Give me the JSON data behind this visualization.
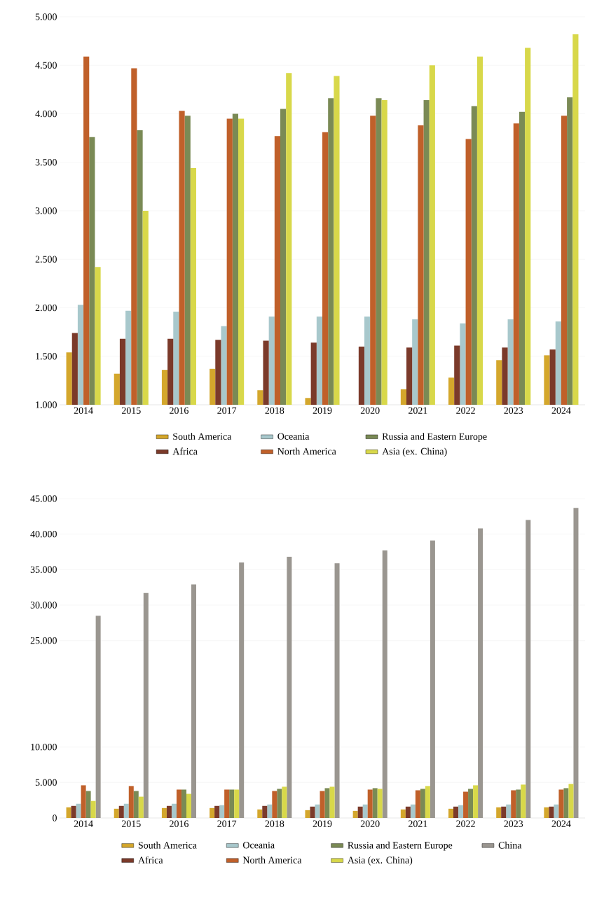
{
  "chart_data": [
    {
      "type": "bar",
      "categories": [
        "2014",
        "2015",
        "2016",
        "2017",
        "2018",
        "2019",
        "2020",
        "2021",
        "2022",
        "2023",
        "2024"
      ],
      "series": [
        {
          "name": "South America",
          "color": "#d4a72c",
          "values": [
            1540,
            1320,
            1360,
            1370,
            1150,
            1070,
            1000,
            1160,
            1280,
            1460,
            1510
          ]
        },
        {
          "name": "Africa",
          "color": "#7b3a2a",
          "values": [
            1740,
            1680,
            1680,
            1670,
            1660,
            1640,
            1600,
            1590,
            1610,
            1590,
            1570
          ]
        },
        {
          "name": "Oceania",
          "color": "#a8c8cc",
          "values": [
            2030,
            1970,
            1960,
            1810,
            1910,
            1910,
            1910,
            1880,
            1840,
            1880,
            1860
          ]
        },
        {
          "name": "North America",
          "color": "#c0602a",
          "values": [
            4590,
            4470,
            4030,
            3950,
            3770,
            3810,
            3980,
            3880,
            3740,
            3900,
            3980
          ]
        },
        {
          "name": "Russia and Eastern Europe",
          "color": "#7a8a55",
          "values": [
            3760,
            3830,
            3980,
            4000,
            4050,
            4160,
            4160,
            4140,
            4080,
            4020,
            4170
          ]
        },
        {
          "name": "Asia (ex. China)",
          "color": "#d8d84a",
          "values": [
            2420,
            3000,
            3440,
            3950,
            4420,
            4390,
            4140,
            4500,
            4590,
            4680,
            4820
          ]
        }
      ],
      "ylim": [
        1000,
        5000
      ],
      "yticks": [
        {
          "value": 1000,
          "label": "1.000"
        },
        {
          "value": 1500,
          "label": "1.500"
        },
        {
          "value": 2000,
          "label": "2.000"
        },
        {
          "value": 2500,
          "label": "2.500"
        },
        {
          "value": 3000,
          "label": "3.000"
        },
        {
          "value": 3500,
          "label": "3.500"
        },
        {
          "value": 4000,
          "label": "4.000"
        },
        {
          "value": 4500,
          "label": "4.500"
        },
        {
          "value": 5000,
          "label": "5.000"
        }
      ],
      "grid": "y",
      "legend": "bottom"
    },
    {
      "type": "bar",
      "categories": [
        "2014",
        "2015",
        "2016",
        "2017",
        "2018",
        "2019",
        "2020",
        "2021",
        "2022",
        "2023",
        "2024"
      ],
      "series": [
        {
          "name": "South America",
          "color": "#d4a72c",
          "values": [
            1500,
            1300,
            1400,
            1400,
            1200,
            1100,
            1000,
            1200,
            1300,
            1500,
            1500
          ]
        },
        {
          "name": "Africa",
          "color": "#7b3a2a",
          "values": [
            1700,
            1700,
            1700,
            1700,
            1700,
            1600,
            1600,
            1600,
            1600,
            1600,
            1600
          ]
        },
        {
          "name": "Oceania",
          "color": "#a8c8cc",
          "values": [
            2000,
            2000,
            2000,
            1800,
            1900,
            1900,
            1900,
            1900,
            1800,
            1900,
            1900
          ]
        },
        {
          "name": "North America",
          "color": "#c0602a",
          "values": [
            4600,
            4500,
            4000,
            4000,
            3800,
            3800,
            4000,
            3900,
            3700,
            3900,
            4000
          ]
        },
        {
          "name": "Russia and Eastern Europe",
          "color": "#7a8a55",
          "values": [
            3800,
            3800,
            4000,
            4000,
            4100,
            4200,
            4200,
            4100,
            4100,
            4000,
            4200
          ]
        },
        {
          "name": "Asia (ex. China)",
          "color": "#d8d84a",
          "values": [
            2400,
            3000,
            3400,
            4000,
            4400,
            4400,
            4100,
            4500,
            4600,
            4700,
            4800
          ]
        },
        {
          "name": "China",
          "color": "#9a9690",
          "values": [
            28500,
            31700,
            32900,
            36000,
            36800,
            35900,
            37700,
            39100,
            40800,
            42000,
            43700
          ]
        }
      ],
      "ylim": [
        0,
        45000
      ],
      "yticks": [
        0,
        {
          "value": 5000,
          "label": "5.000"
        },
        {
          "value": 10000,
          "label": "10.000"
        },
        {
          "value": 25000,
          "label": "25.000"
        },
        {
          "value": 30000,
          "label": "30.000"
        },
        {
          "value": 35000,
          "label": "35.000"
        },
        {
          "value": 40000,
          "label": "40.000"
        },
        {
          "value": 45000,
          "label": "45.000"
        }
      ],
      "grid": "y",
      "legend": "bottom"
    }
  ]
}
